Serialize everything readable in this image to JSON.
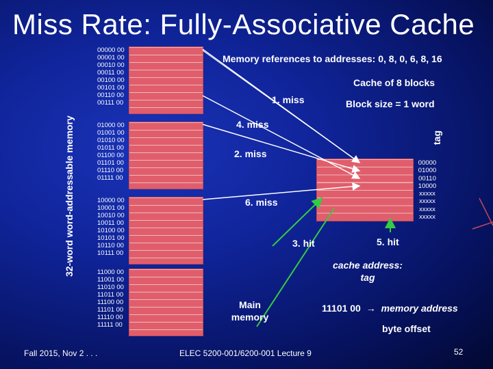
{
  "title": "Miss Rate: Fully-Associative Cache",
  "y_axis_label": "32-word word-addressable memory",
  "memory_refs": "Memory references to addresses: 0, 8, 0, 6, 8, 16",
  "cache_size": "Cache of 8 blocks",
  "block_size": "Block size = 1 word",
  "tag_label": "tag",
  "addresses": [
    [
      "00000 00",
      "00001 00",
      "00010 00",
      "00011 00",
      "00100 00",
      "00101 00",
      "00110 00",
      "00111 00"
    ],
    [
      "01000 00",
      "01001 00",
      "01010 00",
      "01011 00",
      "01100 00",
      "01101 00",
      "01110 00",
      "01111 00"
    ],
    [
      "10000 00",
      "10001 00",
      "10010 00",
      "10011 00",
      "10100 00",
      "10101 00",
      "10110 00",
      "10111 00"
    ],
    [
      "11000 00",
      "11001 00",
      "11010 00",
      "11011 00",
      "11100 00",
      "11101 00",
      "11110 00",
      "11111 00"
    ]
  ],
  "tags": [
    "00000",
    "01000",
    "00110",
    "10000",
    "xxxxx",
    "xxxxx",
    "xxxxx",
    "xxxxx"
  ],
  "events": {
    "e1": "1. miss",
    "e2": "2. miss",
    "e3": "3. hit",
    "e4": "4. miss",
    "e5": "5. hit",
    "e6": "6. miss"
  },
  "main_memory": "Main memory",
  "cache_address": "cache address: tag",
  "address_example": "11101 00",
  "arrow_symbol": "→",
  "memory_address": "memory address",
  "byte_offset": "byte offset",
  "footer_left": "Fall 2015, Nov 2 . . .",
  "footer_center": "ELEC 5200-001/6200-001 Lecture 9",
  "page_number": "52",
  "colors": {
    "background": "#10249a",
    "block": "#e05e6b",
    "arrow_white": "#ffffff",
    "arrow_green": "#33cc44"
  }
}
